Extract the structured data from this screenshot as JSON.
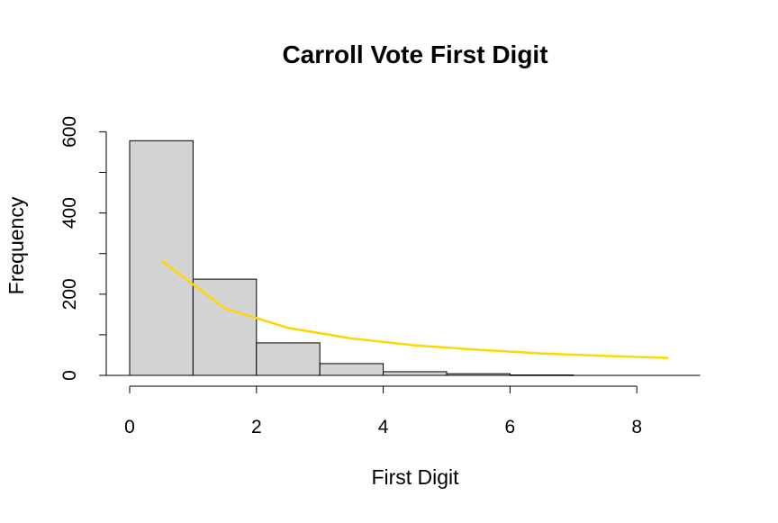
{
  "chart_data": {
    "type": "bar",
    "title": "Carroll Vote First Digit",
    "xlabel": "First Digit",
    "ylabel": "Frequency",
    "bins": [
      [
        0,
        1
      ],
      [
        1,
        2
      ],
      [
        2,
        3
      ],
      [
        3,
        4
      ],
      [
        4,
        5
      ],
      [
        5,
        6
      ],
      [
        6,
        7
      ]
    ],
    "values": [
      578,
      237,
      80,
      29,
      9,
      4,
      1
    ],
    "bar_color": "#d3d3d3",
    "xlim": [
      0,
      9
    ],
    "ylim": [
      0,
      600
    ],
    "xticks": [
      "0",
      "2",
      "4",
      "6",
      "8"
    ],
    "yticks": [
      "0",
      "200",
      "400",
      "600"
    ],
    "overlay_line": {
      "color": "#ffd700",
      "x": [
        0.5,
        1.5,
        2.5,
        3.5,
        4.5,
        5.5,
        6.5,
        7.5,
        8.5
      ],
      "y": [
        283,
        165,
        117,
        91,
        74,
        63,
        54,
        48,
        43
      ]
    },
    "grid": false,
    "legend": "none"
  }
}
